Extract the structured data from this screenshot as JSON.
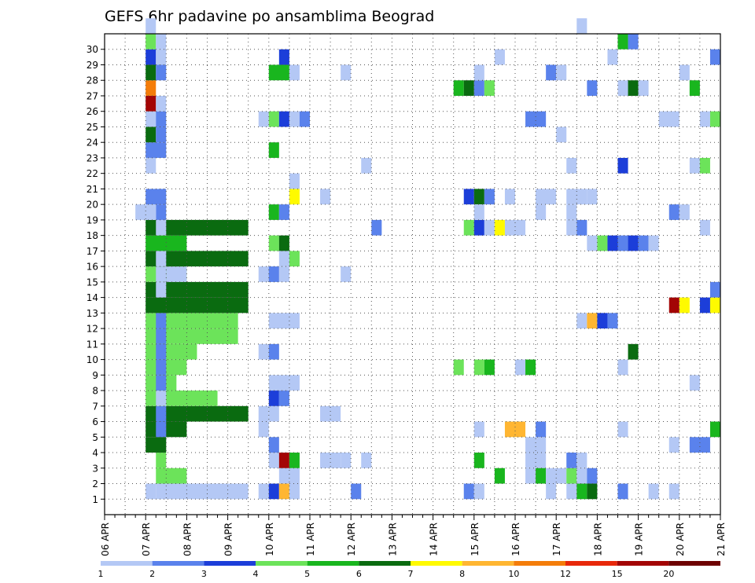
{
  "chart_data": {
    "type": "heatmap",
    "title": "GEFS 6hr padavine po ansamblima Beograd",
    "grid": true,
    "y_members": [
      1,
      2,
      3,
      4,
      5,
      6,
      7,
      8,
      9,
      10,
      11,
      12,
      13,
      14,
      15,
      16,
      17,
      18,
      19,
      20,
      21,
      22,
      23,
      24,
      25,
      26,
      27,
      28,
      29,
      30
    ],
    "x_dates": [
      "06 APR",
      "07 APR",
      "08 APR",
      "09 APR",
      "10 APR",
      "11 APR",
      "12 APR",
      "13 APR",
      "14 APR",
      "15 APR",
      "16 APR",
      "17 APR",
      "18 APR",
      "19 APR",
      "20 APR",
      "21 APR"
    ],
    "step": "6 hr",
    "colorbar": {
      "levels": [
        "1",
        "2",
        "3",
        "4",
        "5",
        "6",
        "7",
        "8",
        "10",
        "12",
        "15",
        "20"
      ],
      "colors": [
        "#b4c8f5",
        "#5a82ec",
        "#1c3ed9",
        "#6ce35a",
        "#19b61e",
        "#0a6b10",
        "#fffa00",
        "#ffb632",
        "#f47d0a",
        "#e8280a",
        "#a30505",
        "#6e0202"
      ],
      "class_meaning": "class k = between level k and level k+1"
    },
    "cells": [
      [
        7.0,
        1,
        1,
        1
      ],
      [
        7.25,
        1,
        9,
        1
      ],
      [
        7.25,
        2,
        3,
        4
      ],
      [
        7.25,
        3,
        1,
        4
      ],
      [
        7.0,
        4,
        2,
        6
      ],
      [
        7.0,
        5,
        4,
        6
      ],
      [
        7.25,
        5,
        1,
        2
      ],
      [
        7.0,
        6,
        10,
        6
      ],
      [
        7.25,
        6,
        1,
        2
      ],
      [
        7.0,
        7,
        7,
        4
      ],
      [
        7.25,
        7,
        1,
        1
      ],
      [
        7.0,
        8,
        3,
        4
      ],
      [
        7.25,
        8,
        1,
        2
      ],
      [
        7.0,
        9,
        4,
        4
      ],
      [
        7.25,
        9,
        1,
        2
      ],
      [
        7.0,
        10,
        5,
        4
      ],
      [
        7.25,
        10,
        1,
        2
      ],
      [
        7.0,
        11,
        9,
        4
      ],
      [
        7.25,
        11,
        1,
        2
      ],
      [
        7.0,
        12,
        9,
        4
      ],
      [
        7.25,
        12,
        1,
        2
      ],
      [
        7.0,
        13,
        10,
        6
      ],
      [
        7.0,
        14,
        10,
        6
      ],
      [
        7.25,
        14,
        1,
        1
      ],
      [
        7.0,
        15,
        4,
        4
      ],
      [
        7.25,
        15,
        1,
        1
      ],
      [
        7.5,
        15,
        2,
        1
      ],
      [
        7.0,
        16,
        10,
        6
      ],
      [
        7.25,
        16,
        1,
        1
      ],
      [
        7.0,
        17,
        4,
        5
      ],
      [
        7.0,
        18,
        10,
        6
      ],
      [
        7.25,
        18,
        1,
        1
      ],
      [
        7.25,
        19,
        1,
        2
      ],
      [
        6.75,
        19,
        2,
        1
      ],
      [
        7.0,
        20,
        2,
        2
      ],
      [
        7.0,
        22,
        1,
        1
      ],
      [
        7.0,
        23,
        2,
        2
      ],
      [
        7.0,
        24,
        1,
        6
      ],
      [
        7.25,
        24,
        1,
        2
      ],
      [
        7.0,
        25,
        1,
        1
      ],
      [
        7.25,
        25,
        1,
        2
      ],
      [
        7.0,
        26,
        1,
        11
      ],
      [
        7.25,
        26,
        1,
        1
      ],
      [
        7.0,
        27,
        1,
        9
      ],
      [
        7.0,
        28,
        1,
        6
      ],
      [
        7.25,
        28,
        1,
        2
      ],
      [
        7.0,
        29,
        1,
        3
      ],
      [
        7.25,
        29,
        1,
        1
      ],
      [
        7.0,
        30,
        1,
        4
      ],
      [
        7.25,
        30,
        1,
        1
      ],
      [
        7.0,
        31,
        1,
        1
      ],
      [
        9.75,
        1,
        1,
        1
      ],
      [
        10.0,
        1,
        1,
        3
      ],
      [
        10.25,
        1,
        1,
        8
      ],
      [
        10.5,
        1,
        1,
        1
      ],
      [
        10.25,
        2,
        2,
        1
      ],
      [
        10.0,
        3,
        1,
        1
      ],
      [
        10.25,
        3,
        1,
        11
      ],
      [
        10.5,
        3,
        1,
        5
      ],
      [
        10.0,
        4,
        1,
        2
      ],
      [
        9.75,
        5,
        1,
        1
      ],
      [
        9.75,
        6,
        1,
        1
      ],
      [
        10.0,
        6,
        1,
        1
      ],
      [
        10.0,
        7,
        1,
        3
      ],
      [
        10.25,
        7,
        1,
        2
      ],
      [
        10.0,
        8,
        2,
        1
      ],
      [
        10.5,
        8,
        1,
        1
      ],
      [
        9.75,
        10,
        1,
        1
      ],
      [
        10.0,
        10,
        1,
        2
      ],
      [
        10.0,
        12,
        3,
        1
      ],
      [
        9.75,
        15,
        2,
        1
      ],
      [
        10.0,
        15,
        1,
        2
      ],
      [
        10.25,
        15,
        1,
        1
      ],
      [
        10.25,
        16,
        1,
        1
      ],
      [
        10.5,
        16,
        1,
        4
      ],
      [
        10.0,
        17,
        1,
        4
      ],
      [
        10.25,
        17,
        1,
        6
      ],
      [
        10.0,
        19,
        1,
        5
      ],
      [
        10.25,
        19,
        1,
        2
      ],
      [
        10.5,
        20,
        1,
        7
      ],
      [
        10.5,
        21,
        1,
        1
      ],
      [
        10.0,
        23,
        1,
        5
      ],
      [
        9.75,
        25,
        1,
        1
      ],
      [
        10.0,
        25,
        1,
        4
      ],
      [
        10.25,
        25,
        1,
        3
      ],
      [
        10.5,
        25,
        1,
        1
      ],
      [
        10.75,
        25,
        1,
        2
      ],
      [
        10.0,
        28,
        2,
        5
      ],
      [
        10.5,
        28,
        1,
        1
      ],
      [
        10.25,
        29,
        1,
        3
      ],
      [
        11.25,
        20,
        1,
        1
      ],
      [
        11.25,
        3,
        2,
        1
      ],
      [
        11.25,
        6,
        2,
        1
      ],
      [
        11.75,
        3,
        1,
        1
      ],
      [
        11.75,
        15,
        1,
        1
      ],
      [
        11.75,
        28,
        1,
        1
      ],
      [
        12.0,
        1,
        1,
        2
      ],
      [
        12.25,
        3,
        1,
        1
      ],
      [
        12.25,
        22,
        1,
        1
      ],
      [
        12.5,
        18,
        1,
        2
      ],
      [
        14.5,
        27,
        1,
        5
      ],
      [
        14.75,
        27,
        1,
        6
      ],
      [
        14.75,
        1,
        1,
        2
      ],
      [
        15.0,
        1,
        1,
        1
      ],
      [
        14.5,
        9,
        1,
        4
      ],
      [
        15.0,
        3,
        1,
        5
      ],
      [
        15.0,
        5,
        1,
        1
      ],
      [
        15.0,
        9,
        1,
        4
      ],
      [
        15.25,
        9,
        1,
        5
      ],
      [
        14.75,
        18,
        1,
        4
      ],
      [
        15.0,
        18,
        1,
        3
      ],
      [
        15.25,
        18,
        1,
        1
      ],
      [
        15.5,
        18,
        1,
        7
      ],
      [
        15.75,
        18,
        2,
        1
      ],
      [
        15.75,
        20,
        1,
        1
      ],
      [
        14.75,
        20,
        1,
        3
      ],
      [
        15.0,
        20,
        1,
        6
      ],
      [
        15.25,
        20,
        1,
        2
      ],
      [
        15.0,
        19,
        1,
        1
      ],
      [
        15.0,
        27,
        1,
        2
      ],
      [
        15.25,
        27,
        1,
        4
      ],
      [
        15.0,
        28,
        1,
        1
      ],
      [
        15.5,
        29,
        1,
        1
      ],
      [
        15.5,
        2,
        1,
        5
      ],
      [
        15.75,
        5,
        2,
        8
      ],
      [
        16.0,
        9,
        1,
        1
      ],
      [
        16.25,
        9,
        1,
        5
      ],
      [
        16.25,
        3,
        2,
        1
      ],
      [
        16.25,
        4,
        2,
        1
      ],
      [
        16.25,
        2,
        1,
        1
      ],
      [
        16.5,
        2,
        1,
        5
      ],
      [
        16.75,
        2,
        2,
        1
      ],
      [
        16.5,
        5,
        1,
        2
      ],
      [
        16.25,
        25,
        2,
        2
      ],
      [
        16.75,
        1,
        1,
        1
      ],
      [
        16.5,
        19,
        1,
        1
      ],
      [
        16.5,
        20,
        2,
        1
      ],
      [
        16.75,
        28,
        1,
        2
      ],
      [
        17.0,
        28,
        1,
        1
      ],
      [
        17.0,
        24,
        1,
        1
      ],
      [
        17.25,
        20,
        2,
        1
      ],
      [
        17.25,
        1,
        1,
        1
      ],
      [
        17.5,
        1,
        1,
        5
      ],
      [
        17.75,
        1,
        1,
        6
      ],
      [
        17.25,
        2,
        1,
        4
      ],
      [
        17.5,
        2,
        1,
        1
      ],
      [
        17.75,
        2,
        1,
        2
      ],
      [
        17.25,
        3,
        1,
        2
      ],
      [
        17.5,
        3,
        1,
        1
      ],
      [
        17.25,
        18,
        1,
        1
      ],
      [
        17.5,
        18,
        1,
        2
      ],
      [
        17.25,
        19,
        1,
        1
      ],
      [
        17.25,
        22,
        1,
        1
      ],
      [
        17.5,
        12,
        1,
        1
      ],
      [
        17.75,
        12,
        1,
        8
      ],
      [
        18.0,
        12,
        1,
        3
      ],
      [
        18.25,
        12,
        1,
        2
      ],
      [
        17.75,
        17,
        1,
        1
      ],
      [
        18.0,
        17,
        1,
        4
      ],
      [
        18.25,
        17,
        1,
        3
      ],
      [
        18.5,
        17,
        1,
        2
      ],
      [
        18.75,
        17,
        1,
        3
      ],
      [
        19.0,
        17,
        1,
        2
      ],
      [
        19.25,
        17,
        1,
        1
      ],
      [
        17.75,
        20,
        1,
        1
      ],
      [
        17.75,
        27,
        1,
        2
      ],
      [
        18.5,
        1,
        1,
        2
      ],
      [
        18.5,
        5,
        1,
        1
      ],
      [
        18.5,
        9,
        1,
        1
      ],
      [
        18.5,
        22,
        1,
        3
      ],
      [
        18.5,
        27,
        1,
        1
      ],
      [
        18.75,
        27,
        1,
        6
      ],
      [
        19.0,
        27,
        1,
        1
      ],
      [
        18.75,
        10,
        1,
        6
      ],
      [
        18.25,
        29,
        1,
        1
      ],
      [
        18.5,
        30,
        1,
        5
      ],
      [
        18.75,
        30,
        1,
        2
      ],
      [
        17.5,
        31,
        1,
        1
      ],
      [
        19.25,
        1,
        1,
        1
      ],
      [
        19.75,
        1,
        1,
        1
      ],
      [
        19.75,
        4,
        1,
        1
      ],
      [
        19.75,
        13,
        1,
        11
      ],
      [
        20.0,
        13,
        1,
        7
      ],
      [
        19.75,
        19,
        1,
        2
      ],
      [
        20.0,
        19,
        1,
        1
      ],
      [
        19.5,
        25,
        2,
        1
      ],
      [
        20.0,
        28,
        1,
        1
      ],
      [
        20.25,
        27,
        1,
        5
      ],
      [
        20.25,
        4,
        2,
        2
      ],
      [
        20.25,
        8,
        1,
        1
      ],
      [
        20.5,
        13,
        1,
        3
      ],
      [
        20.75,
        13,
        1,
        7
      ],
      [
        20.75,
        14,
        1,
        2
      ],
      [
        20.25,
        22,
        1,
        1
      ],
      [
        20.5,
        22,
        1,
        4
      ],
      [
        20.5,
        18,
        1,
        1
      ],
      [
        20.5,
        25,
        1,
        1
      ],
      [
        20.75,
        25,
        1,
        4
      ],
      [
        20.75,
        5,
        1,
        5
      ],
      [
        20.75,
        29,
        1,
        2
      ]
    ]
  }
}
